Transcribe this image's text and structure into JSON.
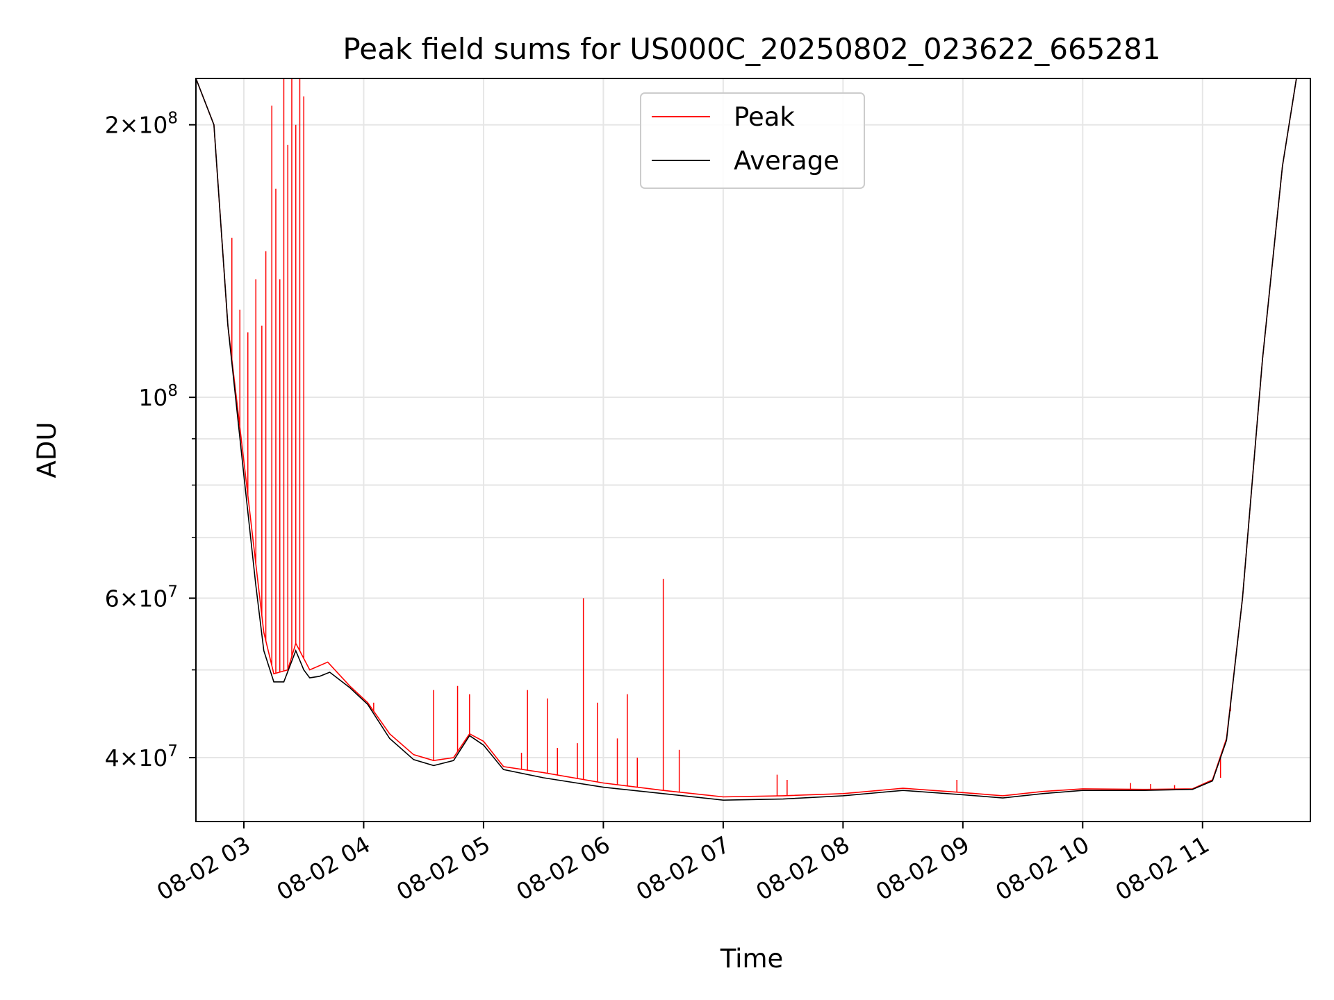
{
  "chart_data": {
    "type": "line",
    "title": "Peak field sums for US000C_20250802_023622_665281",
    "xlabel": "Time",
    "ylabel": "ADU",
    "x_scale": "time",
    "y_scale": "log",
    "xlim": [
      "2025-08-02 02:36",
      "2025-08-02 11:54"
    ],
    "ylim": [
      34000000,
      225000000
    ],
    "x_ticks": [
      "08-02 03",
      "08-02 04",
      "08-02 05",
      "08-02 06",
      "08-02 07",
      "08-02 08",
      "08-02 09",
      "08-02 10",
      "08-02 11"
    ],
    "y_ticks": [
      {
        "value": 40000000,
        "mantissa": "4",
        "exponent": "7"
      },
      {
        "value": 60000000,
        "mantissa": "6",
        "exponent": "7"
      },
      {
        "value": 100000000,
        "mantissa": "",
        "exponent": "8"
      },
      {
        "value": 200000000,
        "mantissa": "2",
        "exponent": "8"
      }
    ],
    "grid": true,
    "legend": {
      "placement": "upper center"
    },
    "series": [
      {
        "name": "Peak",
        "color": "#ff0000",
        "baseline_points": [
          [
            "2025-08-02 02:36",
            225000000
          ],
          [
            "2025-08-02 02:45",
            200000000
          ],
          [
            "2025-08-02 02:52",
            120000000
          ],
          [
            "2025-08-02 03:00",
            85000000
          ],
          [
            "2025-08-02 03:10",
            55000000
          ],
          [
            "2025-08-02 03:15",
            49500000
          ],
          [
            "2025-08-02 03:22",
            50000000
          ],
          [
            "2025-08-02 03:26",
            53500000
          ],
          [
            "2025-08-02 03:33",
            50000000
          ],
          [
            "2025-08-02 03:42",
            51000000
          ],
          [
            "2025-08-02 03:53",
            48000000
          ],
          [
            "2025-08-02 04:02",
            46000000
          ],
          [
            "2025-08-02 04:13",
            42500000
          ],
          [
            "2025-08-02 04:25",
            40300000
          ],
          [
            "2025-08-02 04:35",
            39700000
          ],
          [
            "2025-08-02 04:45",
            40000000
          ],
          [
            "2025-08-02 04:53",
            42500000
          ],
          [
            "2025-08-02 05:00",
            41700000
          ],
          [
            "2025-08-02 05:10",
            39100000
          ],
          [
            "2025-08-02 05:30",
            38500000
          ],
          [
            "2025-08-02 06:00",
            37500000
          ],
          [
            "2025-08-02 06:30",
            36800000
          ],
          [
            "2025-08-02 07:00",
            36200000
          ],
          [
            "2025-08-02 07:30",
            36300000
          ],
          [
            "2025-08-02 08:00",
            36500000
          ],
          [
            "2025-08-02 08:30",
            37000000
          ],
          [
            "2025-08-02 09:00",
            36600000
          ],
          [
            "2025-08-02 09:20",
            36300000
          ],
          [
            "2025-08-02 09:40",
            36700000
          ],
          [
            "2025-08-02 10:00",
            36950000
          ],
          [
            "2025-08-02 10:30",
            36900000
          ],
          [
            "2025-08-02 10:55",
            36950000
          ],
          [
            "2025-08-02 11:05",
            37800000
          ],
          [
            "2025-08-02 11:12",
            42000000
          ],
          [
            "2025-08-02 11:20",
            60000000
          ],
          [
            "2025-08-02 11:30",
            110000000
          ],
          [
            "2025-08-02 11:40",
            180000000
          ],
          [
            "2025-08-02 11:47",
            225000000
          ],
          [
            "2025-08-02 11:54",
            225000000
          ]
        ],
        "spikes": [
          [
            "2025-08-02 02:54",
            150000000
          ],
          [
            "2025-08-02 02:58",
            125000000
          ],
          [
            "2025-08-02 03:02",
            118000000
          ],
          [
            "2025-08-02 03:06",
            135000000
          ],
          [
            "2025-08-02 03:09",
            120000000
          ],
          [
            "2025-08-02 03:11",
            145000000
          ],
          [
            "2025-08-02 03:14",
            210000000
          ],
          [
            "2025-08-02 03:16",
            170000000
          ],
          [
            "2025-08-02 03:18",
            135000000
          ],
          [
            "2025-08-02 03:20",
            225000000
          ],
          [
            "2025-08-02 03:22",
            190000000
          ],
          [
            "2025-08-02 03:24",
            225000000
          ],
          [
            "2025-08-02 03:26",
            200000000
          ],
          [
            "2025-08-02 03:28",
            225000000
          ],
          [
            "2025-08-02 03:30",
            215000000
          ],
          [
            "2025-08-02 04:05",
            46000000
          ],
          [
            "2025-08-02 04:35",
            47500000
          ],
          [
            "2025-08-02 04:47",
            48000000
          ],
          [
            "2025-08-02 04:53",
            47000000
          ],
          [
            "2025-08-02 05:19",
            40500000
          ],
          [
            "2025-08-02 05:22",
            47500000
          ],
          [
            "2025-08-02 05:32",
            46500000
          ],
          [
            "2025-08-02 05:37",
            41000000
          ],
          [
            "2025-08-02 05:47",
            41500000
          ],
          [
            "2025-08-02 05:50",
            60000000
          ],
          [
            "2025-08-02 05:57",
            46000000
          ],
          [
            "2025-08-02 06:07",
            42000000
          ],
          [
            "2025-08-02 06:12",
            47000000
          ],
          [
            "2025-08-02 06:17",
            40000000
          ],
          [
            "2025-08-02 06:30",
            63000000
          ],
          [
            "2025-08-02 06:38",
            40800000
          ],
          [
            "2025-08-02 07:27",
            38300000
          ],
          [
            "2025-08-02 07:32",
            37800000
          ],
          [
            "2025-08-02 08:57",
            37800000
          ],
          [
            "2025-08-02 10:24",
            37500000
          ],
          [
            "2025-08-02 10:34",
            37400000
          ],
          [
            "2025-08-02 10:46",
            37300000
          ],
          [
            "2025-08-02 11:09",
            38000000
          ],
          [
            "2025-08-02 11:14",
            45000000
          ]
        ]
      },
      {
        "name": "Average",
        "color": "#000000",
        "points": [
          [
            "2025-08-02 02:36",
            225000000
          ],
          [
            "2025-08-02 02:45",
            200000000
          ],
          [
            "2025-08-02 02:52",
            120000000
          ],
          [
            "2025-08-02 03:00",
            82000000
          ],
          [
            "2025-08-02 03:06",
            62000000
          ],
          [
            "2025-08-02 03:10",
            52500000
          ],
          [
            "2025-08-02 03:15",
            48500000
          ],
          [
            "2025-08-02 03:20",
            48500000
          ],
          [
            "2025-08-02 03:26",
            52500000
          ],
          [
            "2025-08-02 03:30",
            50000000
          ],
          [
            "2025-08-02 03:33",
            49000000
          ],
          [
            "2025-08-02 03:38",
            49200000
          ],
          [
            "2025-08-02 03:43",
            49700000
          ],
          [
            "2025-08-02 03:53",
            47800000
          ],
          [
            "2025-08-02 04:02",
            45800000
          ],
          [
            "2025-08-02 04:13",
            42000000
          ],
          [
            "2025-08-02 04:25",
            39800000
          ],
          [
            "2025-08-02 04:35",
            39200000
          ],
          [
            "2025-08-02 04:45",
            39700000
          ],
          [
            "2025-08-02 04:53",
            42300000
          ],
          [
            "2025-08-02 05:00",
            41300000
          ],
          [
            "2025-08-02 05:10",
            38800000
          ],
          [
            "2025-08-02 05:30",
            38000000
          ],
          [
            "2025-08-02 06:00",
            37100000
          ],
          [
            "2025-08-02 06:30",
            36500000
          ],
          [
            "2025-08-02 07:00",
            35900000
          ],
          [
            "2025-08-02 07:30",
            36000000
          ],
          [
            "2025-08-02 08:00",
            36300000
          ],
          [
            "2025-08-02 08:30",
            36800000
          ],
          [
            "2025-08-02 09:00",
            36400000
          ],
          [
            "2025-08-02 09:20",
            36100000
          ],
          [
            "2025-08-02 09:40",
            36500000
          ],
          [
            "2025-08-02 10:00",
            36800000
          ],
          [
            "2025-08-02 10:30",
            36800000
          ],
          [
            "2025-08-02 10:55",
            36900000
          ],
          [
            "2025-08-02 11:05",
            37700000
          ],
          [
            "2025-08-02 11:12",
            41800000
          ],
          [
            "2025-08-02 11:20",
            60000000
          ],
          [
            "2025-08-02 11:30",
            110000000
          ],
          [
            "2025-08-02 11:40",
            180000000
          ],
          [
            "2025-08-02 11:47",
            225000000
          ],
          [
            "2025-08-02 11:54",
            225000000
          ]
        ]
      }
    ]
  }
}
